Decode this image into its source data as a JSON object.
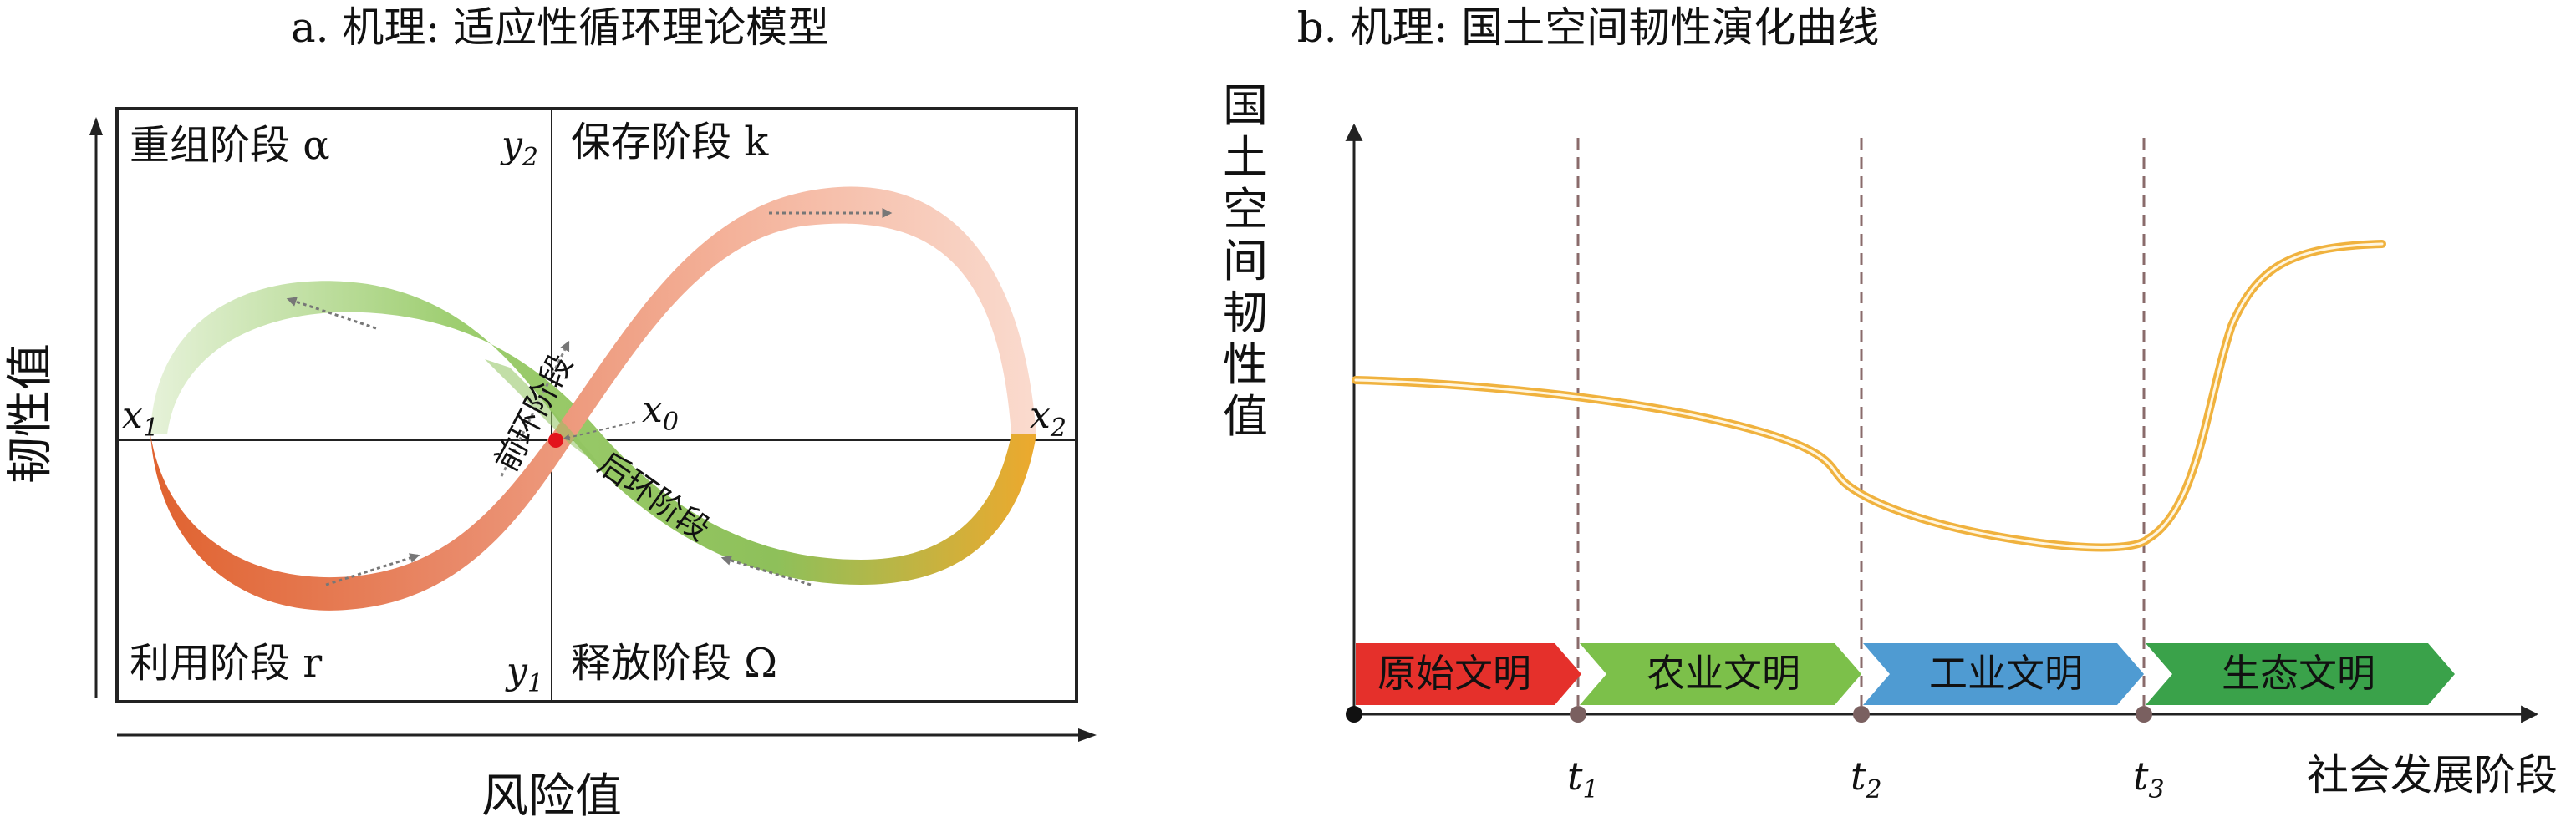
{
  "panel_a": {
    "title": "a. 机理: 适应性循环理论模型",
    "ylabel": "韧性值",
    "xlabel": "风险值",
    "quadrants": {
      "top_left": "重组阶段 α",
      "top_right": "保存阶段 k",
      "bottom_left": "利用阶段 r",
      "bottom_right": "释放阶段 Ω"
    },
    "axis_points": {
      "x1": {
        "main": "x",
        "sub": "1"
      },
      "x2": {
        "main": "x",
        "sub": "2"
      },
      "x0": {
        "main": "x",
        "sub": "0"
      },
      "y1": {
        "main": "y",
        "sub": "1"
      },
      "y2": {
        "main": "y",
        "sub": "2"
      }
    },
    "loop_labels": {
      "front": "前环阶段",
      "back": "后环阶段"
    },
    "colors": {
      "orange": "#e0622f",
      "salmon": "#f2a98c",
      "green": "#79b54a",
      "light_green": "#d8ebc6",
      "yellow": "#eeaa2c",
      "center_dot": "#e3141c"
    }
  },
  "panel_b": {
    "title": "b. 机理: 国土空间韧性演化曲线",
    "ylabel_chars": [
      "国",
      "土",
      "空",
      "间",
      "韧",
      "性",
      "值"
    ],
    "xlabel": "社会发展阶段",
    "time_marks": [
      {
        "main": "t",
        "sub": "1"
      },
      {
        "main": "t",
        "sub": "2"
      },
      {
        "main": "t",
        "sub": "3"
      }
    ],
    "stages": [
      {
        "label": "原始文明",
        "color": "#e5302b"
      },
      {
        "label": "农业文明",
        "color": "#7cc04a"
      },
      {
        "label": "工业文明",
        "color": "#4f9bd2"
      },
      {
        "label": "生态文明",
        "color": "#3aa24a"
      }
    ],
    "curve_color": "#f0b23e"
  },
  "chart_data": {
    "type": "line",
    "title": "b. 机理: 国土空间韧性演化曲线",
    "xlabel": "社会发展阶段",
    "ylabel": "国土空间韧性值",
    "x_ticks": [
      "t1",
      "t2",
      "t3"
    ],
    "y_ticks": [],
    "series": [
      {
        "values_note": "",
        "x": [
          0,
          1,
          2,
          3,
          4
        ],
        "y": [
          0.7,
          0.62,
          0.3,
          0.1,
          0.95
        ]
      }
    ]
  }
}
